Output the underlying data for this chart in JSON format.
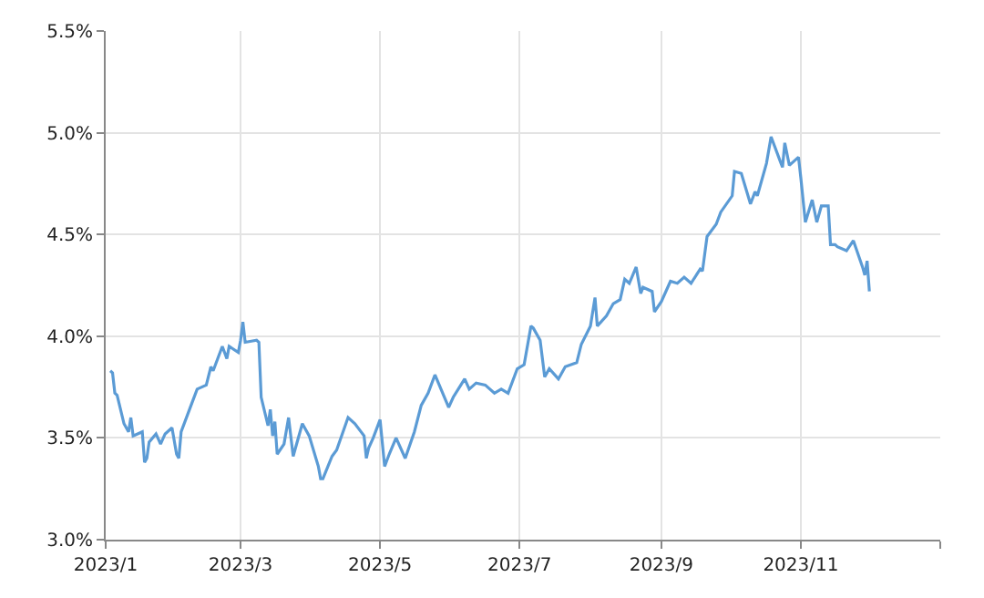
{
  "chart_data": {
    "type": "line",
    "x": [
      "2023-01-03",
      "2023-01-04",
      "2023-01-05",
      "2023-01-06",
      "2023-01-09",
      "2023-01-11",
      "2023-01-12",
      "2023-01-13",
      "2023-01-17",
      "2023-01-18",
      "2023-01-19",
      "2023-01-20",
      "2023-01-23",
      "2023-01-25",
      "2023-01-27",
      "2023-01-30",
      "2023-02-01",
      "2023-02-02",
      "2023-02-03",
      "2023-02-07",
      "2023-02-10",
      "2023-02-14",
      "2023-02-16",
      "2023-02-17",
      "2023-02-21",
      "2023-02-23",
      "2023-02-24",
      "2023-02-28",
      "2023-03-01",
      "2023-03-02",
      "2023-03-03",
      "2023-03-08",
      "2023-03-09",
      "2023-03-10",
      "2023-03-13",
      "2023-03-14",
      "2023-03-15",
      "2023-03-16",
      "2023-03-17",
      "2023-03-20",
      "2023-03-22",
      "2023-03-24",
      "2023-03-28",
      "2023-03-31",
      "2023-04-04",
      "2023-04-05",
      "2023-04-06",
      "2023-04-10",
      "2023-04-12",
      "2023-04-17",
      "2023-04-20",
      "2023-04-24",
      "2023-04-25",
      "2023-04-26",
      "2023-04-28",
      "2023-05-01",
      "2023-05-03",
      "2023-05-05",
      "2023-05-08",
      "2023-05-12",
      "2023-05-16",
      "2023-05-19",
      "2023-05-22",
      "2023-05-25",
      "2023-05-31",
      "2023-06-02",
      "2023-06-07",
      "2023-06-09",
      "2023-06-12",
      "2023-06-16",
      "2023-06-20",
      "2023-06-23",
      "2023-06-26",
      "2023-06-30",
      "2023-07-03",
      "2023-07-06",
      "2023-07-07",
      "2023-07-10",
      "2023-07-12",
      "2023-07-14",
      "2023-07-18",
      "2023-07-21",
      "2023-07-26",
      "2023-07-28",
      "2023-08-01",
      "2023-08-03",
      "2023-08-04",
      "2023-08-08",
      "2023-08-11",
      "2023-08-14",
      "2023-08-16",
      "2023-08-18",
      "2023-08-21",
      "2023-08-23",
      "2023-08-24",
      "2023-08-28",
      "2023-08-29",
      "2023-09-01",
      "2023-09-05",
      "2023-09-08",
      "2023-09-11",
      "2023-09-14",
      "2023-09-18",
      "2023-09-19",
      "2023-09-21",
      "2023-09-25",
      "2023-09-27",
      "2023-10-02",
      "2023-10-03",
      "2023-10-06",
      "2023-10-10",
      "2023-10-12",
      "2023-10-13",
      "2023-10-17",
      "2023-10-19",
      "2023-10-23",
      "2023-10-24",
      "2023-10-25",
      "2023-10-27",
      "2023-10-31",
      "2023-11-01",
      "2023-11-03",
      "2023-11-06",
      "2023-11-08",
      "2023-11-10",
      "2023-11-13",
      "2023-11-14",
      "2023-11-16",
      "2023-11-17",
      "2023-11-21",
      "2023-11-24",
      "2023-11-28",
      "2023-11-29",
      "2023-11-30",
      "2023-12-01"
    ],
    "values": [
      3.83,
      3.82,
      3.72,
      3.71,
      3.57,
      3.53,
      3.6,
      3.51,
      3.53,
      3.38,
      3.4,
      3.48,
      3.52,
      3.47,
      3.52,
      3.55,
      3.42,
      3.4,
      3.53,
      3.65,
      3.74,
      3.76,
      3.85,
      3.83,
      3.95,
      3.89,
      3.95,
      3.92,
      3.98,
      4.07,
      3.97,
      3.98,
      3.97,
      3.7,
      3.56,
      3.64,
      3.51,
      3.58,
      3.42,
      3.47,
      3.6,
      3.41,
      3.57,
      3.51,
      3.36,
      3.3,
      3.3,
      3.41,
      3.44,
      3.6,
      3.57,
      3.51,
      3.4,
      3.45,
      3.5,
      3.59,
      3.36,
      3.42,
      3.5,
      3.4,
      3.53,
      3.66,
      3.72,
      3.81,
      3.65,
      3.7,
      3.79,
      3.74,
      3.77,
      3.76,
      3.72,
      3.74,
      3.72,
      3.84,
      3.86,
      4.05,
      4.04,
      3.98,
      3.8,
      3.84,
      3.79,
      3.85,
      3.87,
      3.96,
      4.05,
      4.19,
      4.05,
      4.1,
      4.16,
      4.18,
      4.28,
      4.26,
      4.34,
      4.21,
      4.24,
      4.22,
      4.12,
      4.17,
      4.27,
      4.26,
      4.29,
      4.26,
      4.33,
      4.32,
      4.49,
      4.55,
      4.61,
      4.69,
      4.81,
      4.8,
      4.65,
      4.71,
      4.69,
      4.85,
      4.98,
      4.86,
      4.83,
      4.95,
      4.84,
      4.88,
      4.78,
      4.56,
      4.67,
      4.56,
      4.64,
      4.64,
      4.45,
      4.45,
      4.44,
      4.42,
      4.47,
      4.34,
      4.3,
      4.37,
      4.22
    ],
    "color": "#5b9bd5",
    "xlim": [
      "2023-01-01",
      "2024-01-01"
    ],
    "xticks": [
      {
        "value": "2023-01",
        "label": "2023/1"
      },
      {
        "value": "2023-03",
        "label": "2023/3"
      },
      {
        "value": "2023-05",
        "label": "2023/5"
      },
      {
        "value": "2023-07",
        "label": "2023/7"
      },
      {
        "value": "2023-09",
        "label": "2023/9"
      },
      {
        "value": "2023-11",
        "label": "2023/11"
      },
      {
        "value": "2024-01",
        "label": null
      }
    ],
    "ylim": [
      3.0,
      5.5
    ],
    "yticks": [
      {
        "value": 3.0,
        "label": "3.0%"
      },
      {
        "value": 3.5,
        "label": "3.5%"
      },
      {
        "value": 4.0,
        "label": "4.0%"
      },
      {
        "value": 4.5,
        "label": "4.5%"
      },
      {
        "value": 5.0,
        "label": "5.0%"
      },
      {
        "value": 5.5,
        "label": "5.5%"
      }
    ],
    "grid": true,
    "marker": "none",
    "line_style": "solid"
  }
}
